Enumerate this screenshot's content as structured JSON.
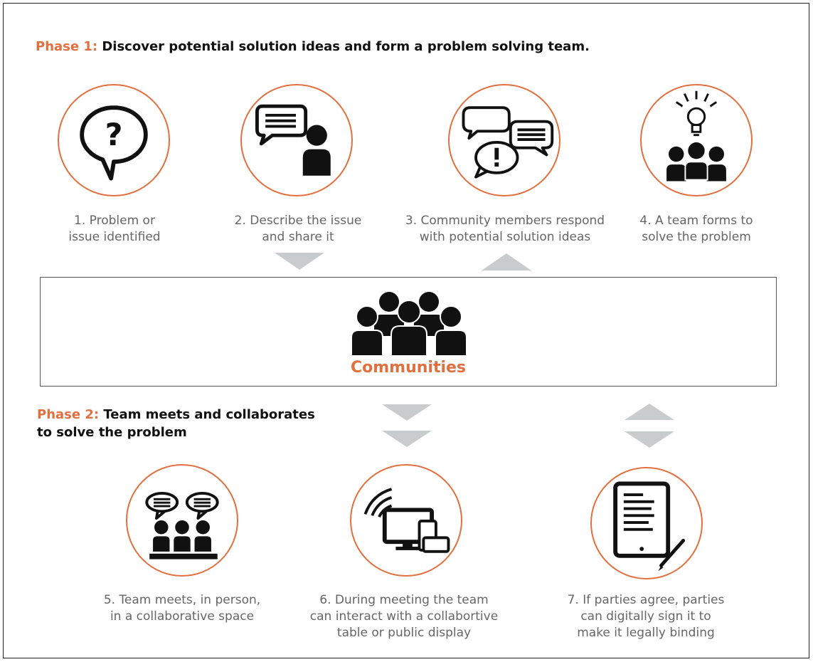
{
  "phase1": {
    "label": "Phase 1:",
    "text": "Discover potential solution ideas and form a problem solving team."
  },
  "phase2": {
    "label": "Phase 2:",
    "line1": "Team meets and collaborates",
    "line2": "to solve the problem"
  },
  "communities": {
    "label": "Communities",
    "icon": "group-icon"
  },
  "steps": [
    {
      "lines": [
        "1. Problem or",
        "issue identified"
      ],
      "icon": "question-bubble-icon"
    },
    {
      "lines": [
        "2. Describe the issue",
        "and share it"
      ],
      "icon": "speaking-person-icon"
    },
    {
      "lines": [
        "3. Community members respond",
        "with potential solution ideas"
      ],
      "icon": "chat-bubbles-icon"
    },
    {
      "lines": [
        "4. A team forms to",
        "solve the problem"
      ],
      "icon": "team-lightbulb-icon"
    },
    {
      "lines": [
        "5. Team meets, in person,",
        "in a collaborative space"
      ],
      "icon": "meeting-icon"
    },
    {
      "lines": [
        "6. During meeting the team",
        "can interact with a collabortive",
        "table or public display"
      ],
      "icon": "devices-icon"
    },
    {
      "lines": [
        "7. If parties agree, parties",
        "can digitally sign it to",
        "make it legally binding"
      ],
      "icon": "tablet-sign-icon"
    }
  ],
  "colors": {
    "accent": "#e2703f",
    "text": "#666666",
    "arrow": "#c9cccc",
    "icon": "#111111"
  }
}
